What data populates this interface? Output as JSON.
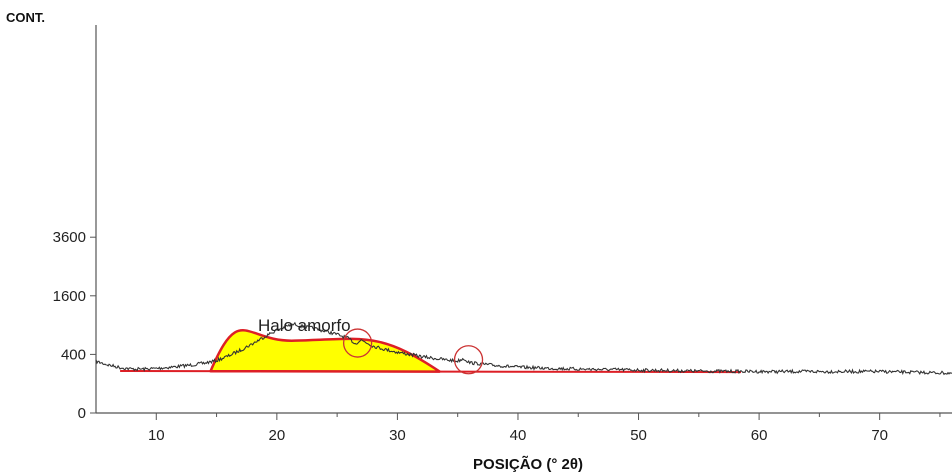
{
  "chart_data": {
    "type": "line",
    "title": "",
    "xlabel": "POSIÇÃO (° 2θ)",
    "ylabel": "CONT.",
    "xlim": [
      5,
      76
    ],
    "y_scale": "sqrt",
    "ylim": [
      0,
      4700
    ],
    "x_ticks": [
      10,
      20,
      30,
      40,
      50,
      60,
      70
    ],
    "y_ticks": [
      0,
      400,
      1600,
      3600
    ],
    "grid": false,
    "series": [
      {
        "x": [
          5,
          6,
          7,
          8,
          9,
          10,
          11,
          12,
          13,
          14,
          15,
          16,
          17,
          18,
          19,
          20,
          21,
          21.5,
          22,
          23,
          24,
          25,
          26,
          26.5,
          27,
          28,
          29,
          30,
          31,
          32,
          33,
          34,
          35,
          35.5,
          36,
          37,
          38,
          39,
          40,
          42,
          45,
          50,
          55,
          60,
          65,
          70,
          76
        ],
        "y": [
          310,
          270,
          240,
          225,
          225,
          232,
          242,
          255,
          270,
          290,
          320,
          380,
          460,
          560,
          680,
          800,
          890,
          920,
          880,
          840,
          780,
          720,
          640,
          560,
          620,
          520,
          470,
          430,
          400,
          370,
          350,
          330,
          315,
          345,
          295,
          280,
          265,
          255,
          245,
          235,
          225,
          215,
          205,
          200,
          200,
          200,
          185
        ],
        "color": "#333333"
      }
    ],
    "annotations": {
      "halo_label": "Halo amorfo",
      "halo_peak_x": 21.5,
      "halo_peak_y": 610,
      "halo_start_x": 14.5,
      "halo_end_x": 33.5,
      "baseline_start_x": 7,
      "baseline_end_x": 58.5,
      "baseline_start_y": 205,
      "baseline_end_y": 195,
      "circled_peaks_x": [
        26.7,
        35.9
      ],
      "circled_peaks_y": [
        570,
        330
      ],
      "halo_fill_color": "#ffff00",
      "halo_line_color": "#dd1f26",
      "circle_color": "#cc3333"
    }
  }
}
